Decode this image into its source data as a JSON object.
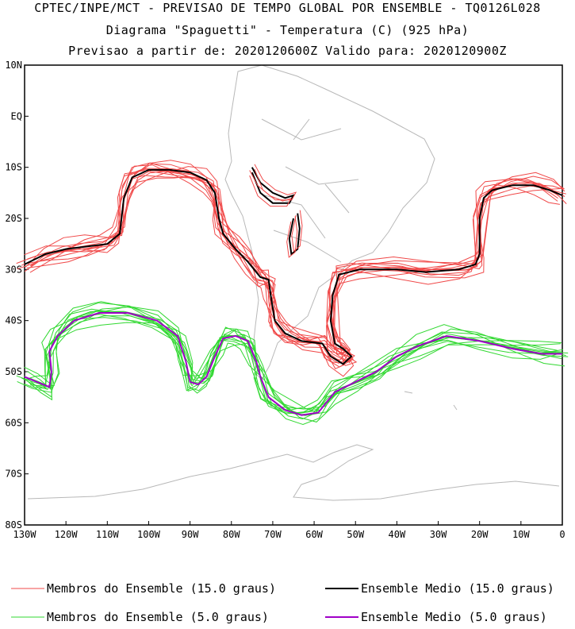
{
  "title_lines": {
    "line1": "CPTEC/INPE/MCT - PREVISAO DE TEMPO GLOBAL POR ENSEMBLE - TQ0126L028",
    "line2": "Diagrama \"Spaguetti\" - Temperatura (C) (925 hPa)",
    "line3": "Previsao a partir de: 2020120600Z  Valido para: 2020120900Z"
  },
  "chart_data": {
    "type": "line",
    "xlim": [
      -130,
      0
    ],
    "ylim": [
      -80,
      10
    ],
    "x_ticks": [
      "130W",
      "120W",
      "110W",
      "100W",
      "90W",
      "80W",
      "70W",
      "60W",
      "50W",
      "40W",
      "30W",
      "20W",
      "10W",
      "0"
    ],
    "y_ticks": [
      "10N",
      "EQ",
      "10S",
      "20S",
      "30S",
      "40S",
      "50S",
      "60S",
      "70S",
      "80S"
    ],
    "series": [
      {
        "name": "Membros do Ensemble (15.0 graus)",
        "color": "#f04848",
        "style": "spread",
        "points": [
          [
            -130,
            -29
          ],
          [
            -125,
            -27
          ],
          [
            -120,
            -26
          ],
          [
            -115,
            -25.5
          ],
          [
            -110,
            -25
          ],
          [
            -107,
            -23
          ],
          [
            -106,
            -16
          ],
          [
            -104,
            -12
          ],
          [
            -100,
            -10.5
          ],
          [
            -95,
            -10.5
          ],
          [
            -90,
            -11
          ],
          [
            -86,
            -12.5
          ],
          [
            -84,
            -15
          ],
          [
            -83,
            -20
          ],
          [
            -82,
            -23
          ],
          [
            -79,
            -26
          ],
          [
            -76,
            -28.5
          ],
          [
            -73,
            -31.5
          ],
          [
            -71,
            -32
          ],
          [
            -70.5,
            -35
          ],
          [
            -69.5,
            -40
          ],
          [
            -67,
            -42.5
          ],
          [
            -63,
            -44
          ],
          [
            -58,
            -44.5
          ],
          [
            -56,
            -47
          ],
          [
            -53,
            -48.5
          ],
          [
            -51,
            -47
          ],
          [
            -53,
            -45.5
          ],
          [
            -55,
            -44.5
          ],
          [
            -56,
            -40
          ],
          [
            -55.5,
            -35
          ],
          [
            -54,
            -31
          ],
          [
            -49,
            -30
          ],
          [
            -40,
            -30
          ],
          [
            -33,
            -30.5
          ],
          [
            -25,
            -30
          ],
          [
            -21,
            -29
          ],
          [
            -20,
            -27
          ],
          [
            -20,
            -20
          ],
          [
            -19,
            -16
          ],
          [
            -17,
            -14.5
          ],
          [
            -12,
            -13.5
          ],
          [
            -7,
            -13.5
          ],
          [
            -3,
            -14.5
          ],
          [
            0,
            -15.5
          ]
        ]
      },
      {
        "name": "Ensemble Medio (15.0 graus)",
        "color": "#000000",
        "style": "mean",
        "points": [
          [
            -130,
            -29
          ],
          [
            -125,
            -27
          ],
          [
            -120,
            -26
          ],
          [
            -115,
            -25.5
          ],
          [
            -110,
            -25
          ],
          [
            -107,
            -23
          ],
          [
            -106,
            -16
          ],
          [
            -104,
            -12
          ],
          [
            -100,
            -10.5
          ],
          [
            -95,
            -10.5
          ],
          [
            -90,
            -11
          ],
          [
            -86,
            -12.5
          ],
          [
            -84,
            -15
          ],
          [
            -83,
            -20
          ],
          [
            -82,
            -23
          ],
          [
            -79,
            -26
          ],
          [
            -76,
            -28.5
          ],
          [
            -73,
            -31.5
          ],
          [
            -71,
            -32
          ],
          [
            -70.5,
            -35
          ],
          [
            -69.5,
            -40
          ],
          [
            -67,
            -42.5
          ],
          [
            -63,
            -44
          ],
          [
            -58,
            -44.5
          ],
          [
            -56,
            -47
          ],
          [
            -53,
            -48.5
          ],
          [
            -51,
            -47
          ],
          [
            -53,
            -45.5
          ],
          [
            -55,
            -44.5
          ],
          [
            -56,
            -40
          ],
          [
            -55.5,
            -35
          ],
          [
            -54,
            -31
          ],
          [
            -49,
            -30
          ],
          [
            -40,
            -30
          ],
          [
            -33,
            -30.5
          ],
          [
            -25,
            -30
          ],
          [
            -21,
            -29
          ],
          [
            -20,
            -27
          ],
          [
            -20,
            -20
          ],
          [
            -19,
            -16
          ],
          [
            -17,
            -14.5
          ],
          [
            -12,
            -13.5
          ],
          [
            -7,
            -13.5
          ],
          [
            -3,
            -14.5
          ],
          [
            0,
            -15.5
          ]
        ]
      },
      {
        "name": "Membros do Ensemble (5.0 graus)",
        "color": "#30d830",
        "style": "spread",
        "points": [
          [
            -130,
            -51
          ],
          [
            -127,
            -52
          ],
          [
            -124,
            -53
          ],
          [
            -123.5,
            -50
          ],
          [
            -124,
            -46
          ],
          [
            -122,
            -43
          ],
          [
            -118,
            -40
          ],
          [
            -112,
            -38.5
          ],
          [
            -105,
            -38.5
          ],
          [
            -98,
            -40
          ],
          [
            -93,
            -43
          ],
          [
            -91,
            -48
          ],
          [
            -90,
            -52
          ],
          [
            -88,
            -52.5
          ],
          [
            -86,
            -51
          ],
          [
            -84,
            -47
          ],
          [
            -82,
            -43.5
          ],
          [
            -79,
            -43
          ],
          [
            -76,
            -44
          ],
          [
            -74,
            -48
          ],
          [
            -73,
            -51
          ],
          [
            -71,
            -55
          ],
          [
            -67,
            -57.5
          ],
          [
            -63,
            -58.5
          ],
          [
            -59,
            -58
          ],
          [
            -55,
            -54
          ],
          [
            -50,
            -52
          ],
          [
            -45,
            -50
          ],
          [
            -40,
            -47
          ],
          [
            -35,
            -45
          ],
          [
            -28,
            -43
          ],
          [
            -20,
            -44
          ],
          [
            -12,
            -45.5
          ],
          [
            -5,
            -46.5
          ],
          [
            0,
            -46.5
          ]
        ]
      },
      {
        "name": "Ensemble Medio (5.0 graus)",
        "color": "#a000c8",
        "style": "mean",
        "points": [
          [
            -130,
            -51
          ],
          [
            -127,
            -52
          ],
          [
            -124,
            -53
          ],
          [
            -123.5,
            -50
          ],
          [
            -124,
            -46
          ],
          [
            -122,
            -43
          ],
          [
            -118,
            -40
          ],
          [
            -112,
            -38.5
          ],
          [
            -105,
            -38.5
          ],
          [
            -98,
            -40
          ],
          [
            -93,
            -43
          ],
          [
            -91,
            -48
          ],
          [
            -90,
            -52
          ],
          [
            -88,
            -52.5
          ],
          [
            -86,
            -51
          ],
          [
            -84,
            -47
          ],
          [
            -82,
            -43.5
          ],
          [
            -79,
            -43
          ],
          [
            -76,
            -44
          ],
          [
            -74,
            -48
          ],
          [
            -73,
            -51
          ],
          [
            -71,
            -55
          ],
          [
            -67,
            -57.5
          ],
          [
            -63,
            -58.5
          ],
          [
            -59,
            -58
          ],
          [
            -55,
            -54
          ],
          [
            -50,
            -52
          ],
          [
            -45,
            -50
          ],
          [
            -40,
            -47
          ],
          [
            -35,
            -45
          ],
          [
            -28,
            -43
          ],
          [
            -20,
            -44
          ],
          [
            -12,
            -45.5
          ],
          [
            -5,
            -46.5
          ],
          [
            0,
            -46.5
          ]
        ]
      }
    ],
    "extra_contours": [
      {
        "color": "#000000",
        "points": [
          [
            -75,
            -10
          ],
          [
            -73,
            -13
          ],
          [
            -70,
            -15
          ],
          [
            -67,
            -16
          ],
          [
            -65,
            -15.5
          ],
          [
            -66,
            -17
          ],
          [
            -70,
            -17
          ],
          [
            -73,
            -15
          ],
          [
            -75,
            -11
          ]
        ]
      },
      {
        "color": "#000000",
        "points": [
          [
            -64,
            -19
          ],
          [
            -63.5,
            -22
          ],
          [
            -64,
            -26
          ],
          [
            -65.5,
            -27
          ],
          [
            -66,
            -24
          ],
          [
            -65,
            -20
          ]
        ]
      }
    ],
    "legend": [
      {
        "label": "Membros do Ensemble (15.0 graus)",
        "color": "#f04848"
      },
      {
        "label": "Ensemble Medio (15.0 graus)",
        "color": "#000000"
      },
      {
        "label": "Membros do Ensemble (5.0 graus)",
        "color": "#30d830"
      },
      {
        "label": "Ensemble Medio (5.0 graus)",
        "color": "#a000c8"
      }
    ],
    "legend_position": "bottom"
  }
}
